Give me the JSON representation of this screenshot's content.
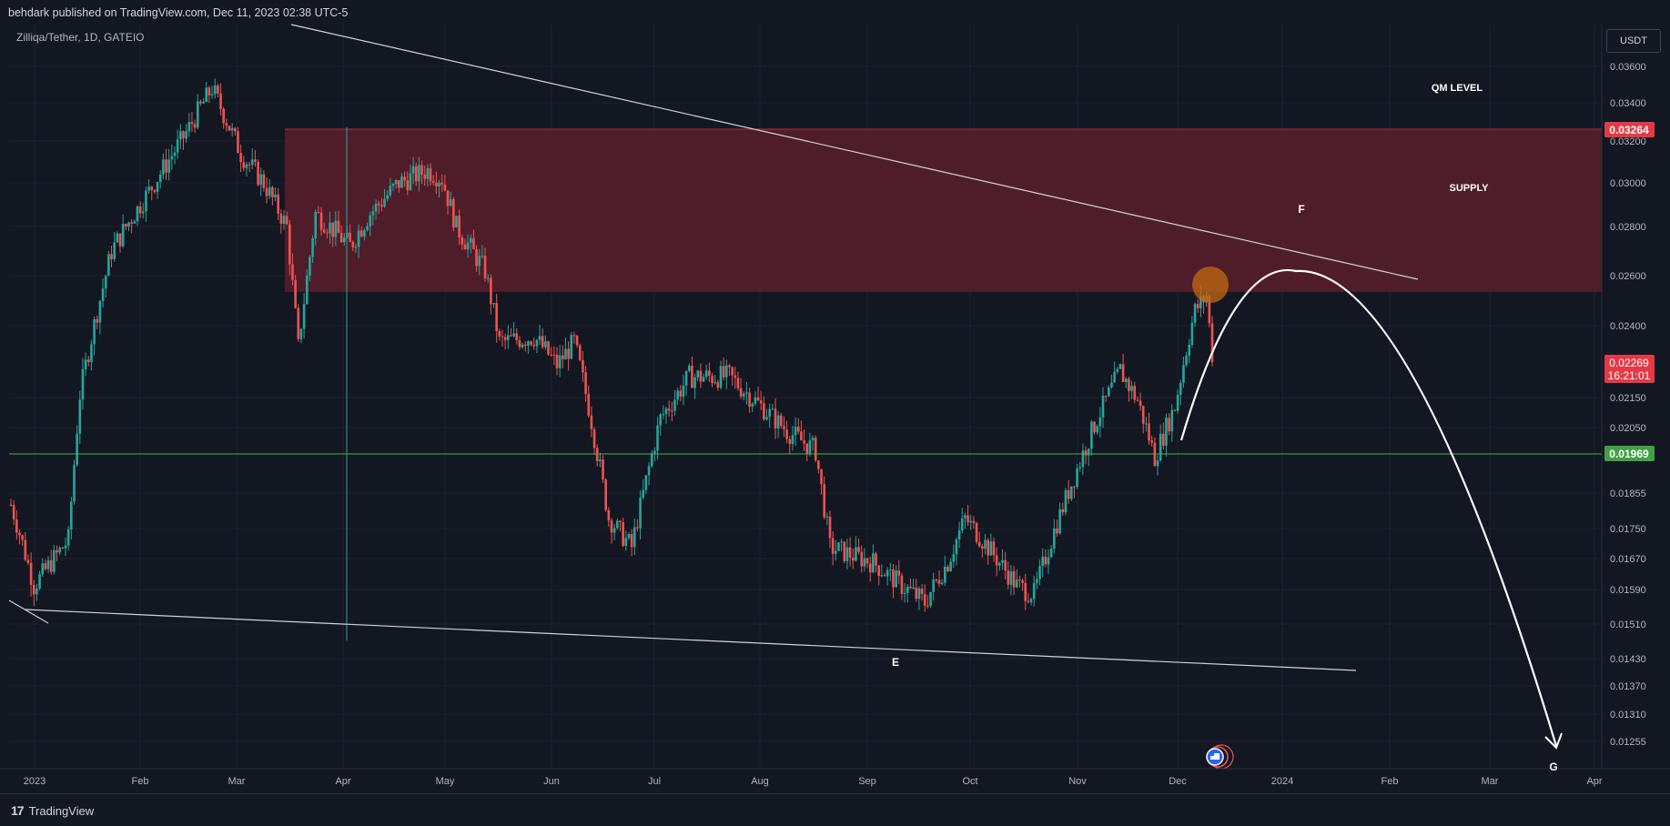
{
  "header": {
    "publish_note": "behdark published on TradingView.com, Dec 11, 2023 02:38 UTC-5"
  },
  "footer": {
    "brand": "TradingView",
    "brand_glyph": "17"
  },
  "chart_data": {
    "type": "candlestick",
    "symbol": "Zilliqa/Tether, 1D, GATEIO",
    "currency": "USDT",
    "y_ticks": [
      "0.03600",
      "0.03400",
      "0.03200",
      "0.03000",
      "0.02800",
      "0.02600",
      "0.02400",
      "0.02150",
      "0.02050",
      "0.01855",
      "0.01750",
      "0.01670",
      "0.01590",
      "0.01510",
      "0.01430",
      "0.01370",
      "0.01310",
      "0.01255"
    ],
    "x_ticks": [
      "2023",
      "Feb",
      "Mar",
      "Apr",
      "May",
      "Jun",
      "Jul",
      "Aug",
      "Sep",
      "Oct",
      "Nov",
      "Dec",
      "2024",
      "Feb",
      "Mar",
      "Apr"
    ],
    "price_labels": {
      "supply_top": "0.03264",
      "last_price": "0.02269",
      "countdown": "16:21:01",
      "support_level": "0.01969"
    },
    "annotations": {
      "qm_level": "QM LEVEL",
      "supply": "SUPPLY",
      "wave_f": "F",
      "wave_e": "E",
      "wave_g": "G"
    },
    "supply_zone": {
      "low": 0.02535,
      "high": 0.03264
    },
    "support_line": 0.01969,
    "last_close": 0.02269,
    "colors": {
      "up": "#26a69a",
      "down": "#ef5350",
      "zone": "#5a1f2a",
      "zone_edge": "#b2313b",
      "support": "#4caf50",
      "highlight": "#c26a12"
    }
  }
}
